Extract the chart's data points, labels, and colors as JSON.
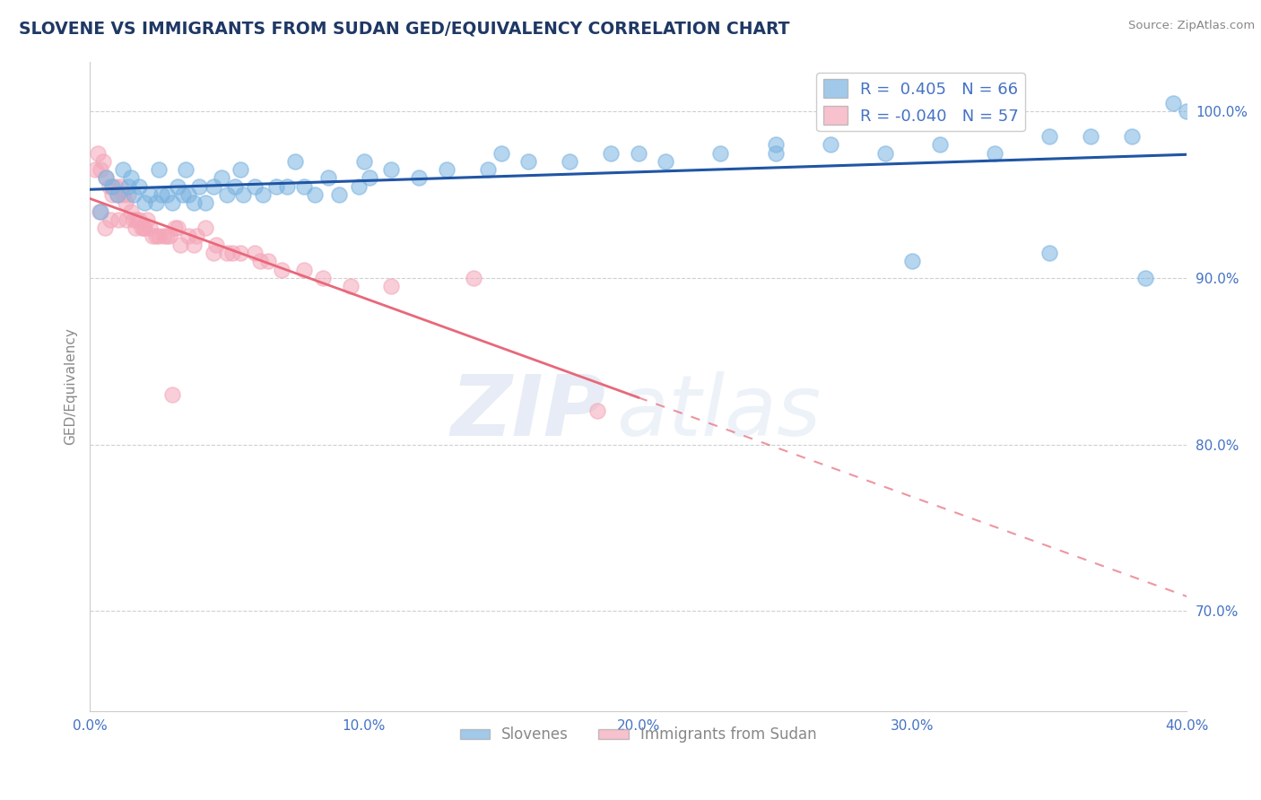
{
  "title": "SLOVENE VS IMMIGRANTS FROM SUDAN GED/EQUIVALENCY CORRELATION CHART",
  "source_text": "Source: ZipAtlas.com",
  "ylabel": "GED/Equivalency",
  "xlim": [
    0.0,
    40.0
  ],
  "ylim": [
    64.0,
    103.0
  ],
  "x_ticks": [
    0.0,
    10.0,
    20.0,
    30.0,
    40.0
  ],
  "x_tick_labels": [
    "0.0%",
    "10.0%",
    "20.0%",
    "30.0%",
    "40.0%"
  ],
  "y_ticks_right": [
    70.0,
    80.0,
    90.0,
    100.0
  ],
  "y_tick_labels_right": [
    "70.0%",
    "80.0%",
    "90.0%",
    "100.0%"
  ],
  "blue_scatter_x": [
    0.4,
    0.6,
    0.8,
    1.0,
    1.2,
    1.4,
    1.6,
    1.8,
    2.0,
    2.2,
    2.4,
    2.6,
    2.8,
    3.0,
    3.2,
    3.4,
    3.6,
    3.8,
    4.0,
    4.2,
    4.5,
    4.8,
    5.0,
    5.3,
    5.6,
    6.0,
    6.3,
    6.8,
    7.2,
    7.8,
    8.2,
    8.7,
    9.1,
    9.8,
    10.2,
    11.0,
    12.0,
    13.0,
    14.5,
    16.0,
    17.5,
    19.0,
    21.0,
    23.0,
    25.0,
    27.0,
    29.0,
    31.0,
    33.0,
    35.0,
    36.5,
    38.0,
    39.5,
    1.5,
    2.5,
    3.5,
    5.5,
    7.5,
    10.0,
    15.0,
    20.0,
    25.0,
    30.0,
    35.0,
    38.5,
    40.0
  ],
  "blue_scatter_y": [
    94.0,
    96.0,
    95.5,
    95.0,
    96.5,
    95.5,
    95.0,
    95.5,
    94.5,
    95.0,
    94.5,
    95.0,
    95.0,
    94.5,
    95.5,
    95.0,
    95.0,
    94.5,
    95.5,
    94.5,
    95.5,
    96.0,
    95.0,
    95.5,
    95.0,
    95.5,
    95.0,
    95.5,
    95.5,
    95.5,
    95.0,
    96.0,
    95.0,
    95.5,
    96.0,
    96.5,
    96.0,
    96.5,
    96.5,
    97.0,
    97.0,
    97.5,
    97.0,
    97.5,
    97.5,
    98.0,
    97.5,
    98.0,
    97.5,
    98.5,
    98.5,
    98.5,
    100.5,
    96.0,
    96.5,
    96.5,
    96.5,
    97.0,
    97.0,
    97.5,
    97.5,
    98.0,
    91.0,
    91.5,
    90.0,
    100.0
  ],
  "pink_scatter_x": [
    0.2,
    0.3,
    0.4,
    0.5,
    0.6,
    0.7,
    0.8,
    0.9,
    1.0,
    1.1,
    1.2,
    1.3,
    1.4,
    1.5,
    1.6,
    1.7,
    1.8,
    1.9,
    2.0,
    2.1,
    2.2,
    2.3,
    2.5,
    2.7,
    2.9,
    3.1,
    3.3,
    3.6,
    3.9,
    4.2,
    4.6,
    5.0,
    5.5,
    6.0,
    6.5,
    7.0,
    7.8,
    8.5,
    9.5,
    11.0,
    14.0,
    18.5,
    0.35,
    0.55,
    0.75,
    1.05,
    1.35,
    1.65,
    1.95,
    2.4,
    2.8,
    3.2,
    3.8,
    4.5,
    5.2,
    6.2,
    3.0
  ],
  "pink_scatter_y": [
    96.5,
    97.5,
    96.5,
    97.0,
    96.0,
    95.5,
    95.0,
    95.5,
    95.0,
    95.5,
    95.0,
    94.5,
    95.0,
    94.0,
    93.5,
    93.5,
    93.5,
    93.0,
    93.0,
    93.5,
    93.0,
    92.5,
    92.5,
    92.5,
    92.5,
    93.0,
    92.0,
    92.5,
    92.5,
    93.0,
    92.0,
    91.5,
    91.5,
    91.5,
    91.0,
    90.5,
    90.5,
    90.0,
    89.5,
    89.5,
    90.0,
    82.0,
    94.0,
    93.0,
    93.5,
    93.5,
    93.5,
    93.0,
    93.0,
    92.5,
    92.5,
    93.0,
    92.0,
    91.5,
    91.5,
    91.0,
    83.0
  ],
  "blue_color": "#7ab3e0",
  "pink_color": "#f4a7b9",
  "blue_line_color": "#2055a4",
  "pink_line_color": "#e8687a",
  "background_color": "#ffffff",
  "grid_color": "#d0d0d0",
  "title_color": "#1f3864",
  "source_color": "#888888",
  "axis_label_color": "#888888",
  "tick_color": "#4472c4",
  "watermark_zip": "ZIP",
  "watermark_atlas": "atlas",
  "R_blue": 0.405,
  "N_blue": 66,
  "R_pink": -0.04,
  "N_pink": 57,
  "pink_solid_end_x": 20.0
}
